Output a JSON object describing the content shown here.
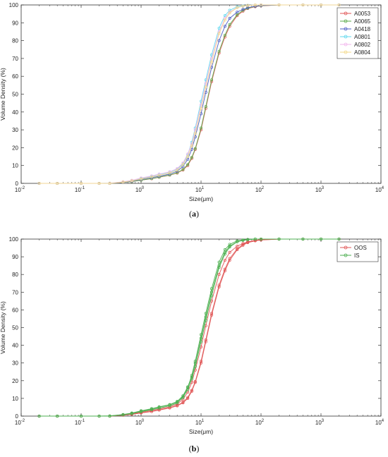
{
  "figure": {
    "caption_a_open": "(",
    "caption_a_letter": "a",
    "caption_a_close": ")",
    "caption_b_open": "(",
    "caption_b_letter": "b",
    "caption_b_close": ")"
  },
  "chart_data": [
    {
      "type": "line",
      "panel": "a",
      "xlabel": "Size(μm)",
      "ylabel": "Volume Density (%)",
      "x_scale": "log",
      "xlim": [
        0.01,
        10000
      ],
      "ylim": [
        0,
        100
      ],
      "x_ticks": [
        0.01,
        0.1,
        1,
        10,
        100,
        1000,
        10000
      ],
      "x_tick_labels": [
        "10-2",
        "10-1",
        "100",
        "101",
        "102",
        "103",
        "104"
      ],
      "y_ticks": [
        0,
        10,
        20,
        30,
        40,
        50,
        60,
        70,
        80,
        90,
        100
      ],
      "grid": false,
      "legend_position": "top-right",
      "x": [
        0.02,
        0.04,
        0.1,
        0.2,
        0.3,
        0.5,
        0.7,
        1,
        1.5,
        2,
        3,
        4,
        5,
        6,
        7,
        8,
        10,
        12,
        15,
        20,
        25,
        30,
        40,
        50,
        60,
        80,
        100,
        200,
        500,
        1000,
        2000
      ],
      "series": [
        {
          "name": "A0053",
          "color": "#e05555",
          "marker": "o",
          "values": [
            0,
            0,
            0,
            0,
            0,
            0.5,
            1.0,
            1.8,
            2.6,
            3.4,
            4.6,
            5.8,
            7.5,
            10,
            14,
            19,
            30,
            42,
            57,
            73,
            82,
            88,
            94,
            96.5,
            98,
            99,
            99.5,
            100,
            100,
            100,
            100
          ]
        },
        {
          "name": "A0065",
          "color": "#5aaa4a",
          "marker": "o",
          "values": [
            0,
            0,
            0,
            0,
            0,
            0.5,
            1.0,
            1.8,
            2.7,
            3.5,
            4.7,
            6.0,
            7.8,
            10.5,
            14.5,
            19.5,
            31,
            43,
            58,
            74,
            83,
            89,
            94.5,
            97,
            98.2,
            99.2,
            99.6,
            100,
            100,
            100,
            100
          ]
        },
        {
          "name": "A0418",
          "color": "#4c5ec4",
          "marker": "o",
          "values": [
            0,
            0,
            0,
            0,
            0,
            0.6,
            1.2,
            2.2,
            3.2,
            4.0,
            5.2,
            6.8,
            9.5,
            13.5,
            19,
            26,
            39,
            51,
            65,
            80,
            88,
            92.5,
            96,
            97.5,
            98.5,
            99.3,
            99.7,
            100,
            100,
            100,
            100
          ]
        },
        {
          "name": "A0801",
          "color": "#5fd8ee",
          "marker": "o",
          "values": [
            0,
            0,
            0,
            0,
            0.1,
            0.8,
            1.6,
            2.8,
            4.0,
            5.0,
            6.3,
            8.0,
            11,
            16,
            23,
            31,
            46,
            58,
            72,
            87,
            94,
            97,
            99,
            99.5,
            99.8,
            100,
            100,
            100,
            100,
            100,
            100
          ]
        },
        {
          "name": "A0802",
          "color": "#f2b6ee",
          "marker": "o",
          "values": [
            0,
            0,
            0,
            0,
            0.1,
            0.9,
            1.7,
            3.0,
            4.2,
            5.2,
            6.5,
            8.3,
            11.5,
            16.5,
            22,
            30,
            44,
            56,
            70,
            85,
            92.5,
            96,
            98.5,
            99.3,
            99.7,
            100,
            100,
            100,
            100,
            100,
            100
          ]
        },
        {
          "name": "A0804",
          "color": "#f3d98a",
          "marker": "o",
          "values": [
            0,
            0,
            0,
            0,
            0,
            0.7,
            1.4,
            2.5,
            3.6,
            4.5,
            5.8,
            7.4,
            10.5,
            15,
            21,
            28,
            42,
            54,
            68,
            84,
            91.5,
            95.5,
            98.5,
            99.3,
            99.7,
            100,
            100,
            100,
            100,
            100,
            100
          ]
        }
      ]
    },
    {
      "type": "line",
      "panel": "b",
      "xlabel": "Size(μm)",
      "ylabel": "Volume Density (%)",
      "x_scale": "log",
      "xlim": [
        0.01,
        10000
      ],
      "ylim": [
        0,
        100
      ],
      "x_ticks": [
        0.01,
        0.1,
        1,
        10,
        100,
        1000,
        10000
      ],
      "x_tick_labels": [
        "10-2",
        "10-1",
        "100",
        "101",
        "102",
        "103",
        "104"
      ],
      "y_ticks": [
        0,
        10,
        20,
        30,
        40,
        50,
        60,
        70,
        80,
        90,
        100
      ],
      "grid": false,
      "legend_position": "top-right",
      "x": [
        0.02,
        0.04,
        0.1,
        0.2,
        0.3,
        0.5,
        0.7,
        1,
        1.5,
        2,
        3,
        4,
        5,
        6,
        7,
        8,
        10,
        12,
        15,
        20,
        25,
        30,
        40,
        50,
        60,
        80,
        100,
        200,
        500,
        1000,
        2000
      ],
      "series": [
        {
          "name": "OOS",
          "color": "#e05555",
          "marker": "o",
          "note_curves": 3,
          "curves": [
            [
              0,
              0,
              0,
              0,
              0,
              0.5,
              1.0,
              1.8,
              2.6,
              3.4,
              4.6,
              5.8,
              7.5,
              10,
              14,
              19,
              30,
              42,
              57,
              73,
              82,
              88,
              94,
              96.5,
              98,
              99,
              99.5,
              100,
              100,
              100,
              100
            ],
            [
              0,
              0,
              0,
              0,
              0,
              0.5,
              1.0,
              1.8,
              2.7,
              3.5,
              4.7,
              6.0,
              7.8,
              10.5,
              14.5,
              19.5,
              31,
              43,
              58,
              74,
              83,
              89,
              94.5,
              97,
              98.2,
              99.2,
              99.6,
              100,
              100,
              100,
              100
            ],
            [
              0,
              0,
              0,
              0,
              0,
              0.6,
              1.2,
              2.2,
              3.2,
              4.0,
              5.2,
              6.8,
              9.5,
              13.5,
              19,
              26,
              39,
              51,
              65,
              80,
              88,
              92.5,
              96,
              97.5,
              98.5,
              99.3,
              99.7,
              100,
              100,
              100,
              100
            ]
          ]
        },
        {
          "name": "IS",
          "color": "#4caf50",
          "marker": "o",
          "note_curves": 3,
          "curves": [
            [
              0,
              0,
              0,
              0,
              0.1,
              0.8,
              1.6,
              2.8,
              4.0,
              5.0,
              6.3,
              8.0,
              11,
              16,
              23,
              31,
              46,
              58,
              72,
              87,
              94,
              97,
              99,
              99.5,
              99.8,
              100,
              100,
              100,
              100,
              100,
              100
            ],
            [
              0,
              0,
              0,
              0,
              0.1,
              0.9,
              1.7,
              3.0,
              4.2,
              5.2,
              6.5,
              8.3,
              11.5,
              16.5,
              22,
              30,
              44,
              56,
              70,
              85,
              92.5,
              96,
              98.5,
              99.3,
              99.7,
              100,
              100,
              100,
              100,
              100,
              100
            ],
            [
              0,
              0,
              0,
              0,
              0,
              0.7,
              1.4,
              2.5,
              3.6,
              4.5,
              5.8,
              7.4,
              10.5,
              15,
              21,
              28,
              42,
              54,
              68,
              84,
              91.5,
              95.5,
              98.5,
              99.3,
              99.7,
              100,
              100,
              100,
              100,
              100,
              100
            ]
          ]
        }
      ]
    }
  ]
}
